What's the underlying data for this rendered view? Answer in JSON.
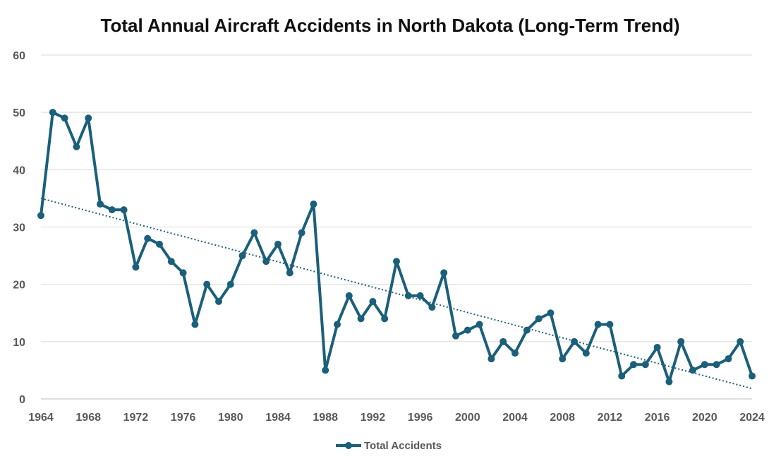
{
  "chart_data": {
    "type": "line",
    "title": "Total Annual Aircraft Accidents in North Dakota (Long-Term Trend)",
    "xlabel": "",
    "ylabel": "",
    "xlim": [
      1964,
      2024
    ],
    "ylim": [
      0,
      60
    ],
    "x_ticks": [
      1964,
      1968,
      1972,
      1976,
      1980,
      1984,
      1988,
      1992,
      1996,
      2000,
      2004,
      2008,
      2012,
      2016,
      2020,
      2024
    ],
    "y_ticks": [
      0,
      10,
      20,
      30,
      40,
      50,
      60
    ],
    "grid": "horizontal",
    "legend_position": "bottom-center",
    "series": [
      {
        "name": "Total Accidents",
        "color": "#1b5f7a",
        "x": [
          1964,
          1965,
          1966,
          1967,
          1968,
          1969,
          1970,
          1971,
          1972,
          1973,
          1974,
          1975,
          1976,
          1977,
          1978,
          1979,
          1980,
          1981,
          1982,
          1983,
          1984,
          1985,
          1986,
          1987,
          1988,
          1989,
          1990,
          1991,
          1992,
          1993,
          1994,
          1995,
          1996,
          1997,
          1998,
          1999,
          2000,
          2001,
          2002,
          2003,
          2004,
          2005,
          2006,
          2007,
          2008,
          2009,
          2010,
          2011,
          2012,
          2013,
          2014,
          2015,
          2016,
          2017,
          2018,
          2019,
          2020,
          2021,
          2022,
          2023,
          2024
        ],
        "values": [
          32,
          50,
          49,
          44,
          49,
          34,
          33,
          33,
          23,
          28,
          27,
          24,
          22,
          13,
          20,
          17,
          20,
          25,
          29,
          24,
          27,
          22,
          29,
          34,
          5,
          13,
          18,
          14,
          17,
          14,
          24,
          18,
          18,
          16,
          22,
          11,
          12,
          13,
          7,
          10,
          8,
          12,
          14,
          15,
          7,
          10,
          8,
          13,
          13,
          4,
          6,
          6,
          9,
          3,
          10,
          5,
          6,
          6,
          7,
          10,
          4
        ]
      }
    ],
    "trendline": {
      "type": "linear",
      "style": "dotted",
      "color": "#1b5f7a",
      "x": [
        1964,
        2024
      ],
      "y": [
        35,
        1.8
      ]
    }
  }
}
